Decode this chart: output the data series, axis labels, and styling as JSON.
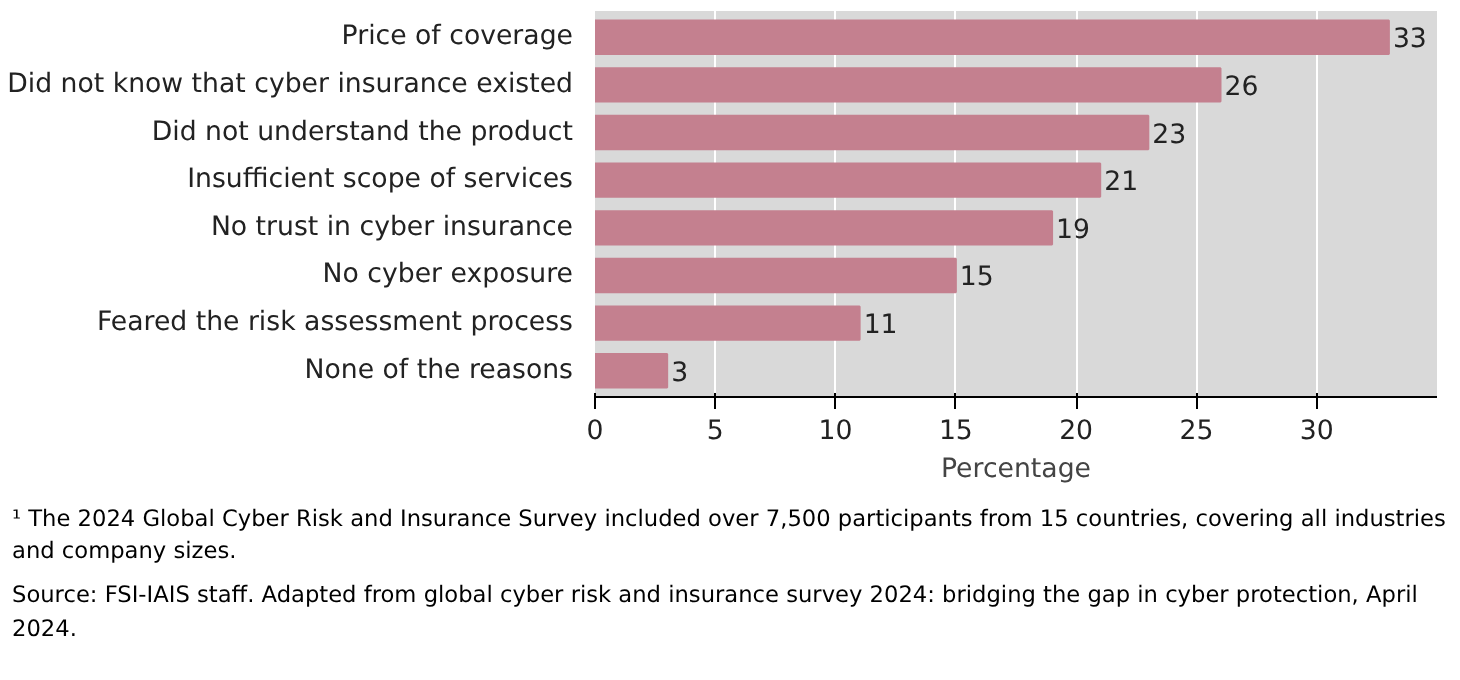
{
  "chart_data": {
    "type": "bar",
    "orientation": "horizontal",
    "categories": [
      "Price of coverage",
      "Did not know that cyber insurance existed",
      "Did not understand the product",
      "Insufficient scope of services",
      "No trust in cyber insurance",
      "No cyber exposure",
      "Feared the risk assessment process",
      "None of the reasons"
    ],
    "values": [
      33,
      26,
      23,
      21,
      19,
      15,
      11,
      3
    ],
    "color": "#c4808f",
    "data_labels": true,
    "xlabel": "Percentage",
    "xlim": [
      0,
      35
    ],
    "xticks": [
      0,
      5,
      10,
      15,
      20,
      25,
      30
    ],
    "grid": "x",
    "annotations": [
      "¹  The 2024 Global Cyber Risk and Insurance Survey included over 7,500 participants from 15 countries, covering all industries and company sizes.",
      "Source: FSI-IAIS staff. Adapted from global cyber risk and insurance survey 2024: bridging the gap in cyber protection, April 2024."
    ]
  }
}
